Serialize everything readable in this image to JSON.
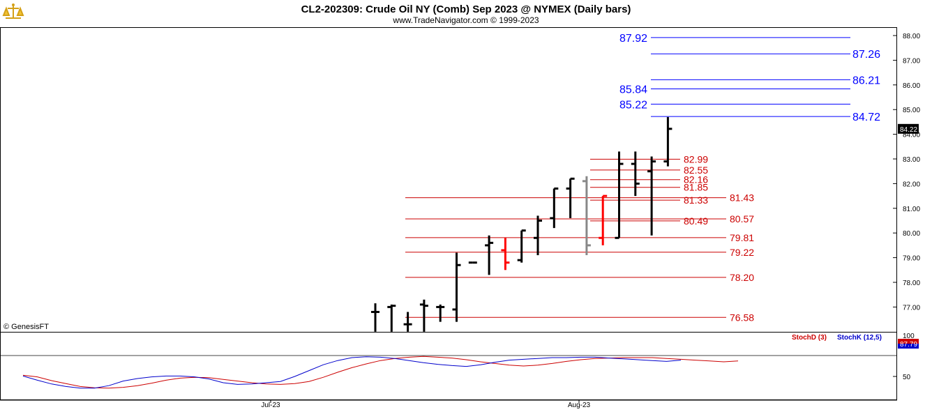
{
  "header": {
    "title": "CL2-202309:  Crude Oil NY (Comb) Sep 2023 @ NYMEX  (Daily bars)",
    "subtitle": "www.TradeNavigator.com © 1999-2023",
    "watermark": "© GenesisFT"
  },
  "chart_data": [
    {
      "type": "ohlc",
      "y_ticks": [
        "88.00",
        "87.00",
        "86.00",
        "85.00",
        "84.00",
        "83.00",
        "82.00",
        "81.00",
        "80.00",
        "79.00",
        "78.00",
        "77.00"
      ],
      "ylim": [
        76.1,
        88.3
      ],
      "last_price": "84.22",
      "x_labels": [
        "Jul-23",
        "Aug-23"
      ],
      "bars": [
        {
          "o": 76.8,
          "h": 77.15,
          "l": 76.0,
          "c": 76.8,
          "color": "#000000"
        },
        {
          "o": 77.0,
          "h": 77.1,
          "l": 76.0,
          "c": 77.05,
          "color": "#000000"
        },
        {
          "o": 76.3,
          "h": 76.8,
          "l": 76.0,
          "c": 76.3,
          "color": "#000000"
        },
        {
          "o": 77.1,
          "h": 77.3,
          "l": 76.0,
          "c": 77.05,
          "color": "#000000"
        },
        {
          "o": 77.0,
          "h": 77.1,
          "l": 76.4,
          "c": 77.0,
          "color": "#000000"
        },
        {
          "o": 76.9,
          "h": 79.2,
          "l": 76.4,
          "c": 78.7,
          "color": "#000000"
        },
        {
          "o": 78.8,
          "h": 78.8,
          "l": 78.8,
          "c": 78.8,
          "color": "#000000"
        },
        {
          "o": 79.5,
          "h": 79.9,
          "l": 78.3,
          "c": 79.6,
          "color": "#000000"
        },
        {
          "o": 79.3,
          "h": 79.8,
          "l": 78.5,
          "c": 78.8,
          "color": "#ff0000"
        },
        {
          "o": 78.9,
          "h": 80.1,
          "l": 78.8,
          "c": 80.1,
          "color": "#000000"
        },
        {
          "o": 79.8,
          "h": 80.7,
          "l": 79.1,
          "c": 80.5,
          "color": "#000000"
        },
        {
          "o": 80.6,
          "h": 81.8,
          "l": 80.2,
          "c": 81.8,
          "color": "#000000"
        },
        {
          "o": 81.8,
          "h": 82.2,
          "l": 80.6,
          "c": 82.2,
          "color": "#000000"
        },
        {
          "o": 82.1,
          "h": 82.3,
          "l": 79.1,
          "c": 79.5,
          "color": "#888888"
        },
        {
          "o": 79.8,
          "h": 81.5,
          "l": 79.5,
          "c": 81.5,
          "color": "#ff0000"
        },
        {
          "o": 79.8,
          "h": 83.3,
          "l": 79.8,
          "c": 82.8,
          "color": "#000000"
        },
        {
          "o": 82.8,
          "h": 83.3,
          "l": 81.5,
          "c": 82.0,
          "color": "#000000"
        },
        {
          "o": 82.5,
          "h": 83.1,
          "l": 79.9,
          "c": 82.9,
          "color": "#000000"
        },
        {
          "o": 82.9,
          "h": 84.7,
          "l": 82.7,
          "c": 84.22,
          "color": "#000000"
        }
      ],
      "levels": [
        {
          "label": "87.92",
          "value": 87.92,
          "color": "#0000ff",
          "side": "left"
        },
        {
          "label": "87.26",
          "value": 87.26,
          "color": "#0000ff",
          "side": "right"
        },
        {
          "label": "86.21",
          "value": 86.21,
          "color": "#0000ff",
          "side": "right"
        },
        {
          "label": "85.84",
          "value": 85.84,
          "color": "#0000ff",
          "side": "left"
        },
        {
          "label": "85.22",
          "value": 85.22,
          "color": "#0000ff",
          "side": "left"
        },
        {
          "label": "84.72",
          "value": 84.72,
          "color": "#0000ff",
          "side": "right"
        },
        {
          "label": "82.99",
          "value": 82.99,
          "color": "#cc0000",
          "side": "short"
        },
        {
          "label": "82.55",
          "value": 82.55,
          "color": "#cc0000",
          "side": "short"
        },
        {
          "label": "82.16",
          "value": 82.16,
          "color": "#cc0000",
          "side": "short"
        },
        {
          "label": "81.85",
          "value": 81.85,
          "color": "#cc0000",
          "side": "short"
        },
        {
          "label": "81.43",
          "value": 81.43,
          "color": "#cc0000",
          "side": "long"
        },
        {
          "label": "81.33",
          "value": 81.33,
          "color": "#cc0000",
          "side": "short"
        },
        {
          "label": "80.57",
          "value": 80.57,
          "color": "#cc0000",
          "side": "long"
        },
        {
          "label": "80.49",
          "value": 80.49,
          "color": "#cc0000",
          "side": "short"
        },
        {
          "label": "79.81",
          "value": 79.81,
          "color": "#cc0000",
          "side": "long"
        },
        {
          "label": "79.22",
          "value": 79.22,
          "color": "#cc0000",
          "side": "long"
        },
        {
          "label": "78.20",
          "value": 78.2,
          "color": "#cc0000",
          "side": "long"
        },
        {
          "label": "76.58",
          "value": 76.58,
          "color": "#cc0000",
          "side": "long"
        }
      ]
    },
    {
      "type": "line",
      "legend": [
        {
          "name": "StochD (3)",
          "color": "#cc0000"
        },
        {
          "name": "StochK (12,5)",
          "color": "#0000cc"
        }
      ],
      "y_ticks": [
        "50"
      ],
      "top_tick": "100",
      "ylim": [
        0,
        100
      ],
      "reference_line": 80,
      "last_values": [
        "87.79"
      ],
      "series": [
        {
          "name": "StochD (3)",
          "color": "#cc0000",
          "values": [
            53,
            49,
            40,
            33,
            26,
            23,
            22,
            24,
            28,
            34,
            41,
            46,
            48,
            47,
            43,
            39,
            35,
            32,
            31,
            33,
            38,
            48,
            60,
            71,
            80,
            88,
            93,
            96,
            98,
            96,
            94,
            90,
            85,
            81,
            77,
            75,
            77,
            81,
            86,
            90,
            93,
            94,
            95,
            95,
            95,
            93,
            91,
            89,
            87,
            85,
            87
          ]
        },
        {
          "name": "StochK (12,5)",
          "color": "#0000cc",
          "values": [
            51,
            41,
            32,
            26,
            22,
            22,
            28,
            39,
            45,
            49,
            51,
            51,
            49,
            44,
            35,
            31,
            32,
            35,
            38,
            50,
            64,
            78,
            88,
            95,
            97,
            96,
            93,
            88,
            83,
            79,
            76,
            74,
            78,
            84,
            89,
            91,
            93,
            95,
            95,
            96,
            96,
            94,
            92,
            90,
            88,
            86,
            89
          ]
        }
      ]
    }
  ]
}
